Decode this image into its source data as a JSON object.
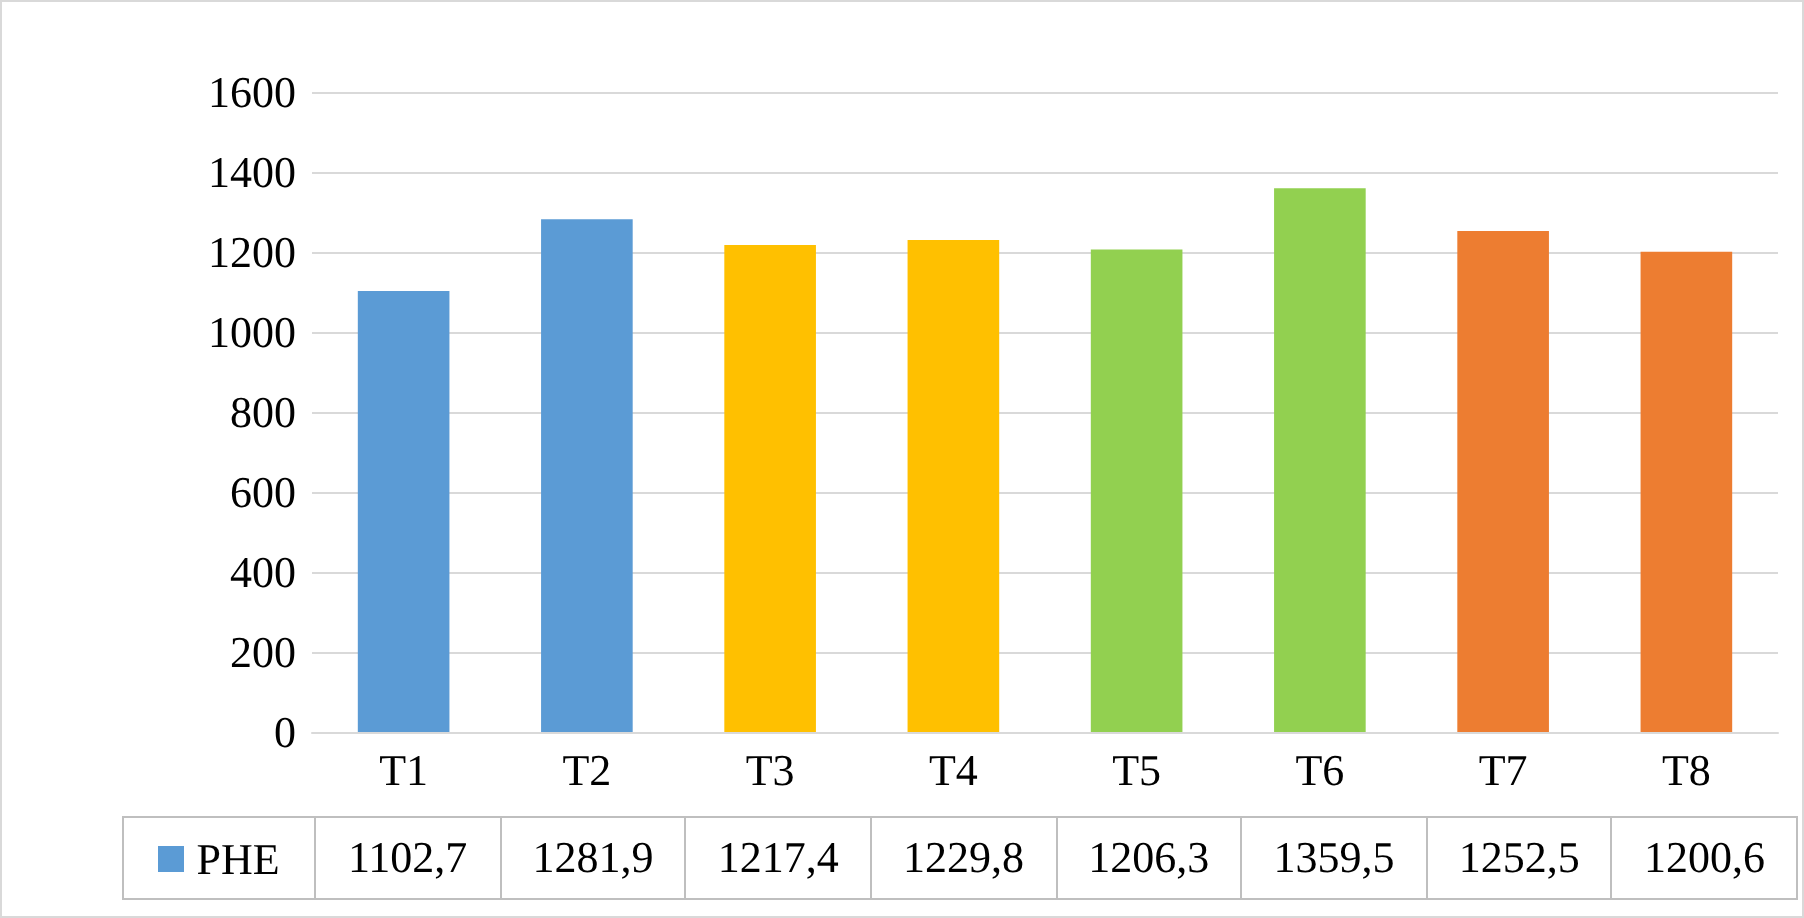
{
  "chart_data": {
    "type": "bar",
    "categories": [
      "T1",
      "T2",
      "T3",
      "T4",
      "T5",
      "T6",
      "T7",
      "T8"
    ],
    "series": [
      {
        "name": "PHE",
        "color": "#5b9bd5",
        "colors": [
          "#5b9bd5",
          "#5b9bd5",
          "#ffc000",
          "#ffc000",
          "#92d050",
          "#92d050",
          "#ed7d31",
          "#ed7d31"
        ],
        "values": [
          1102.7,
          1281.9,
          1217.4,
          1229.8,
          1206.3,
          1359.5,
          1252.5,
          1200.6
        ],
        "value_labels": [
          "1102,7",
          "1281,9",
          "1217,4",
          "1229,8",
          "1206,3",
          "1359,5",
          "1252,5",
          "1200,6"
        ]
      }
    ],
    "ylim": [
      0,
      1600
    ],
    "yticks": [
      0,
      200,
      400,
      600,
      800,
      1000,
      1200,
      1400,
      1600
    ],
    "grid": "y",
    "legend": "bottom"
  }
}
